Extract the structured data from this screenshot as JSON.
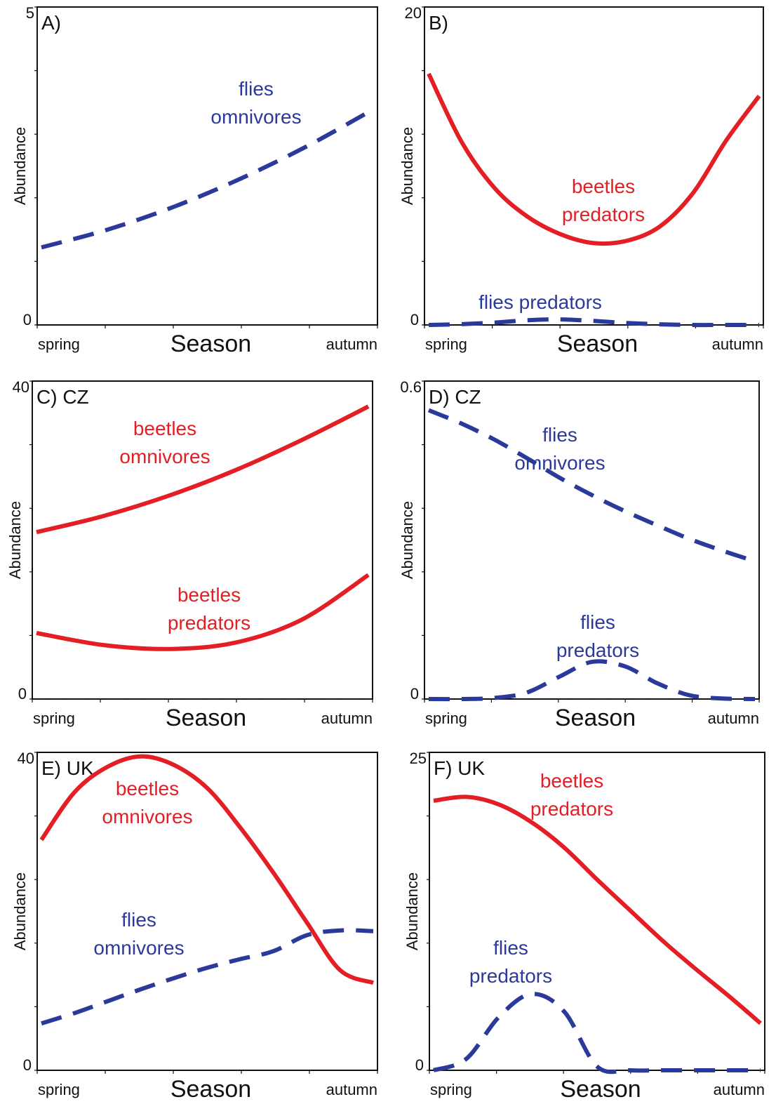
{
  "figure": {
    "x_axis_label": "Season",
    "y_axis_label": "Abundance",
    "x_start_label": "spring",
    "x_end_label": "autumn"
  },
  "colors": {
    "beetles": "#e31e24",
    "flies": "#2b3a9a",
    "frame": "#111111"
  },
  "chart_data": [
    {
      "type": "line",
      "panel_label": "A)",
      "xlabel": "Season",
      "ylabel": "Abundance",
      "x_tick_labels": [
        "spring",
        "autumn"
      ],
      "x": [
        0,
        0.2,
        0.4,
        0.6,
        0.8,
        1.0
      ],
      "ylim": [
        0,
        5
      ],
      "y_tick_labels": [
        "0",
        "5"
      ],
      "series": [
        {
          "name": "flies omnivores",
          "label_lines": [
            "flies",
            "omnivores"
          ],
          "group": "flies",
          "style": "dashed",
          "values": [
            1.22,
            1.5,
            1.86,
            2.3,
            2.81,
            3.39
          ]
        }
      ]
    },
    {
      "type": "line",
      "panel_label": "B)",
      "xlabel": "Season",
      "ylabel": "Abundance",
      "x_tick_labels": [
        "spring",
        "autumn"
      ],
      "x": [
        0,
        0.1,
        0.2,
        0.3,
        0.4,
        0.5,
        0.6,
        0.7,
        0.8,
        0.9,
        1.0
      ],
      "ylim": [
        0,
        20
      ],
      "y_tick_labels": [
        "0",
        "20"
      ],
      "series": [
        {
          "name": "beetles predators",
          "label_lines": [
            "beetles",
            "predators"
          ],
          "group": "beetles",
          "style": "solid",
          "values": [
            15.8,
            11.5,
            8.6,
            6.8,
            5.7,
            5.15,
            5.3,
            6.2,
            8.3,
            11.6,
            14.4
          ]
        },
        {
          "name": "flies predators",
          "label_lines": [
            "flies predators"
          ],
          "group": "flies",
          "style": "dashed",
          "values": [
            0.0,
            0.05,
            0.15,
            0.3,
            0.35,
            0.25,
            0.12,
            0.04,
            0.0,
            0.0,
            0.0
          ]
        }
      ]
    },
    {
      "type": "line",
      "panel_label": "C) CZ",
      "xlabel": "Season",
      "ylabel": "Abundance",
      "x_tick_labels": [
        "spring",
        "autumn"
      ],
      "x": [
        0,
        0.2,
        0.4,
        0.6,
        0.8,
        1.0
      ],
      "ylim": [
        0,
        40
      ],
      "y_tick_labels": [
        "0",
        "40"
      ],
      "series": [
        {
          "name": "beetles omnivores",
          "label_lines": [
            "beetles",
            "omnivores"
          ],
          "group": "beetles",
          "style": "solid",
          "values": [
            21.0,
            23.0,
            25.6,
            28.8,
            32.6,
            36.8
          ]
        },
        {
          "name": "beetles predators",
          "label_lines": [
            "beetles",
            "predators"
          ],
          "group": "beetles",
          "style": "solid",
          "values": [
            8.3,
            6.8,
            6.3,
            7.1,
            10.0,
            15.6
          ]
        }
      ]
    },
    {
      "type": "line",
      "panel_label": "D) CZ",
      "xlabel": "Season",
      "ylabel": "Abundance",
      "x_tick_labels": [
        "spring",
        "autumn"
      ],
      "x": [
        0,
        0.1,
        0.2,
        0.3,
        0.4,
        0.5,
        0.6,
        0.7,
        0.8,
        0.9,
        1.0
      ],
      "ylim": [
        0,
        0.6
      ],
      "y_tick_labels": [
        "0",
        "0.6"
      ],
      "series": [
        {
          "name": "flies omnivores",
          "label_lines": [
            "flies",
            "omnivores"
          ],
          "group": "flies",
          "style": "dashed",
          "values": [
            0.545,
            0.52,
            0.49,
            0.455,
            0.418,
            0.385,
            0.355,
            0.328,
            0.302,
            0.28,
            0.26
          ]
        },
        {
          "name": "flies predators",
          "label_lines": [
            "flies",
            "predators"
          ],
          "group": "flies",
          "style": "dashed",
          "values": [
            0.0,
            0.0,
            0.002,
            0.012,
            0.042,
            0.07,
            0.062,
            0.03,
            0.007,
            0.001,
            0.0
          ]
        }
      ]
    },
    {
      "type": "line",
      "panel_label": "E) UK",
      "xlabel": "Season",
      "ylabel": "Abundance",
      "x_tick_labels": [
        "spring",
        "autumn"
      ],
      "x": [
        0,
        0.1,
        0.2,
        0.3,
        0.4,
        0.5,
        0.6,
        0.7,
        0.8,
        0.9,
        1.0
      ],
      "ylim": [
        0,
        40
      ],
      "y_tick_labels": [
        "0",
        "40"
      ],
      "series": [
        {
          "name": "beetles omnivores",
          "label_lines": [
            "beetles",
            "omnivores"
          ],
          "group": "beetles",
          "style": "solid",
          "values": [
            29.0,
            35.0,
            38.2,
            39.5,
            38.4,
            35.5,
            30.5,
            24.8,
            18.6,
            12.6,
            11.0
          ]
        },
        {
          "name": "flies omnivores",
          "label_lines": [
            "flies",
            "omnivores"
          ],
          "group": "flies",
          "style": "dashed",
          "values": [
            5.9,
            7.2,
            8.7,
            10.2,
            11.6,
            12.9,
            14.0,
            15.0,
            17.0,
            17.6,
            17.5
          ]
        }
      ]
    },
    {
      "type": "line",
      "panel_label": "F) UK",
      "xlabel": "Season",
      "ylabel": "Abundance",
      "x_tick_labels": [
        "spring",
        "autumn"
      ],
      "x": [
        0,
        0.1,
        0.2,
        0.3,
        0.4,
        0.5,
        0.6,
        0.7,
        0.8,
        0.9,
        1.0
      ],
      "ylim": [
        0,
        25
      ],
      "y_tick_labels": [
        "0",
        "25"
      ],
      "series": [
        {
          "name": "beetles predators",
          "label_lines": [
            "beetles",
            "predators"
          ],
          "group": "beetles",
          "style": "solid",
          "values": [
            21.2,
            21.5,
            20.9,
            19.5,
            17.5,
            15.0,
            12.6,
            10.2,
            8.0,
            5.9,
            3.7
          ]
        },
        {
          "name": "flies predators",
          "label_lines": [
            "flies",
            "predators"
          ],
          "group": "flies",
          "style": "dashed",
          "values": [
            0.0,
            0.9,
            4.2,
            6.0,
            4.6,
            0.3,
            0.0,
            0.0,
            0.0,
            0.0,
            0.0
          ]
        }
      ]
    }
  ]
}
